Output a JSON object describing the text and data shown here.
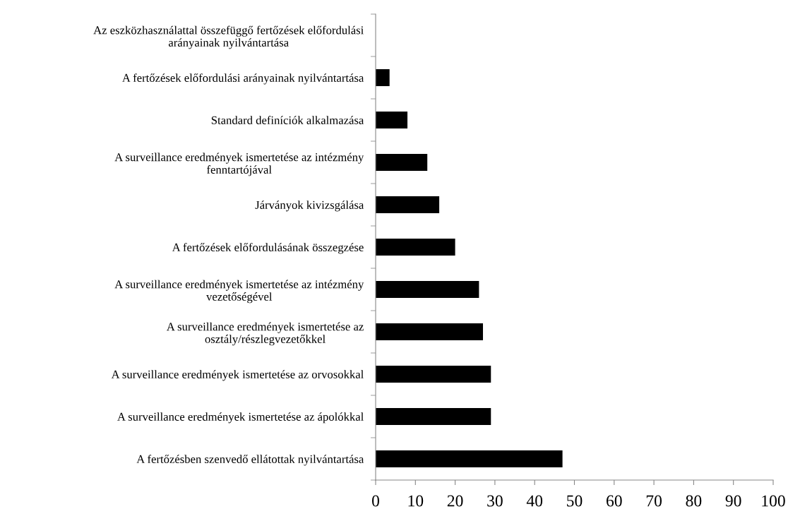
{
  "chart_data": {
    "type": "bar",
    "orientation": "horizontal",
    "categories": [
      "Az eszközhasználattal összefüggő fertőzések előfordulási\narányainak nyilvántartása",
      "A fertőzések előfordulási arányainak nyilvántartása",
      "Standard definíciók alkalmazása",
      "A surveillance eredmények ismertetése az intézmény\nfenntartójával",
      "Járványok kivizsgálása",
      "A fertőzések előfordulásának összegzése",
      "A surveillance eredmények ismertetése az intézmény\nvezetőségével",
      "A surveillance eredmények ismertetése az\nosztály/részlegvezetőkkel",
      "A surveillance eredmények ismertetése az orvosokkal",
      "A surveillance eredmények ismertetése az ápolókkal",
      "A fertőzésben szenvedő ellátottak nyilvántartása"
    ],
    "values": [
      0,
      3.5,
      8,
      13,
      16,
      20,
      26,
      27,
      29,
      29,
      47
    ],
    "color": "#000000",
    "xlim": [
      0,
      100
    ],
    "xticks": [
      0,
      10,
      20,
      30,
      40,
      50,
      60,
      70,
      80,
      90,
      100
    ],
    "grid": false
  }
}
